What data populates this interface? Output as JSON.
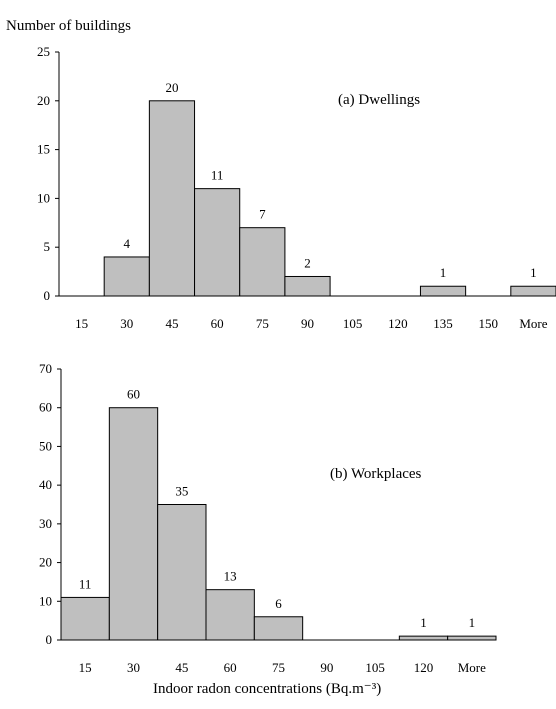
{
  "chart_data": [
    {
      "type": "bar",
      "panel_label": "(a) Dwellings",
      "ylabel": "Number of buildings",
      "xlabel": "",
      "categories": [
        "15",
        "30",
        "45",
        "60",
        "75",
        "90",
        "105",
        "120",
        "135",
        "150",
        "More"
      ],
      "values": [
        0,
        4,
        20,
        11,
        7,
        2,
        0,
        0,
        1,
        0,
        1
      ],
      "ylim": [
        0,
        25
      ],
      "yticks": [
        "0",
        "5",
        "10",
        "15",
        "20",
        "25"
      ],
      "data_labels": [
        "",
        "4",
        "20",
        "11",
        "7",
        "2",
        "",
        "",
        "1",
        "",
        "1"
      ],
      "grid": false,
      "bar_color": "#bfbfbf"
    },
    {
      "type": "bar",
      "panel_label": "(b) Workplaces",
      "ylabel": "",
      "xlabel": "Indoor radon concentrations (Bq.m⁻³)",
      "categories": [
        "15",
        "30",
        "45",
        "60",
        "75",
        "90",
        "105",
        "120",
        "More"
      ],
      "values": [
        11,
        60,
        35,
        13,
        6,
        0,
        0,
        1,
        1
      ],
      "ylim": [
        0,
        70
      ],
      "yticks": [
        "0",
        "10",
        "20",
        "30",
        "40",
        "50",
        "60",
        "70"
      ],
      "data_labels": [
        "11",
        "60",
        "35",
        "13",
        "6",
        "",
        "",
        "1",
        "1"
      ],
      "grid": false,
      "bar_color": "#bfbfbf"
    }
  ]
}
